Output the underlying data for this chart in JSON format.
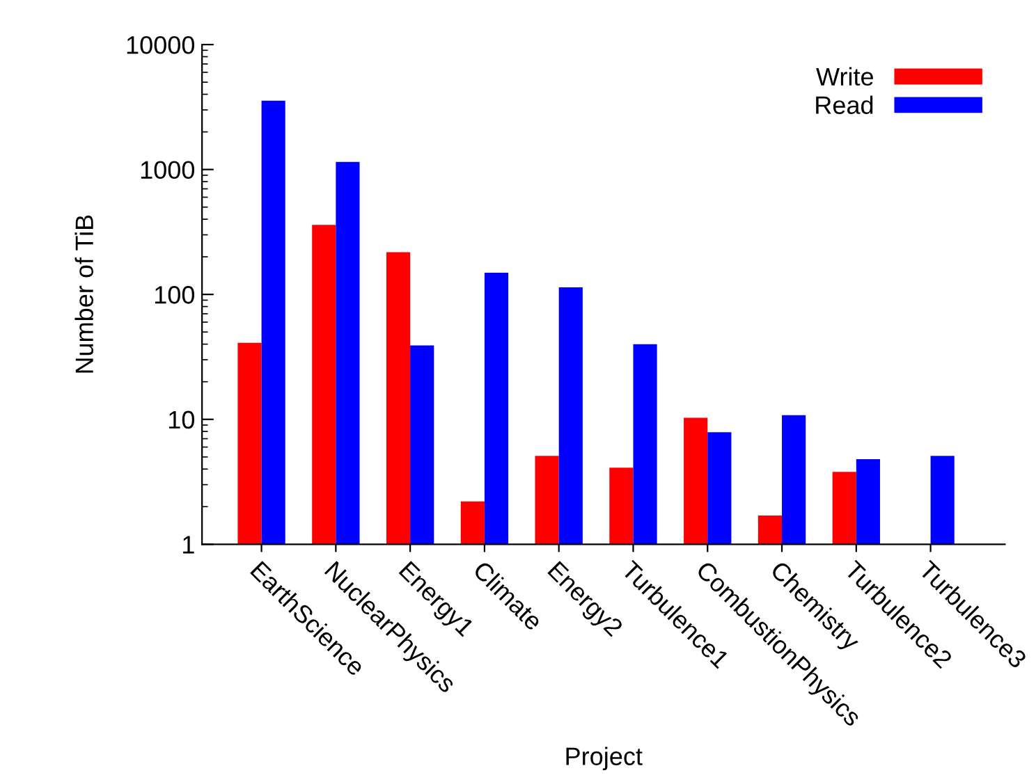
{
  "chart_data": {
    "type": "bar",
    "xlabel": "Project",
    "ylabel": "Number of TiB",
    "categories": [
      "EarthScience",
      "NuclearPhysics",
      "Energy1",
      "Climate",
      "Energy2",
      "Turbulence1",
      "CombustionPhysics",
      "Chemistry",
      "Turbulence2",
      "Turbulence3"
    ],
    "series": [
      {
        "name": "Write",
        "color": "#ff0000",
        "values": [
          41,
          360,
          218,
          2.2,
          5.1,
          4.1,
          10.3,
          1.7,
          3.8,
          null
        ]
      },
      {
        "name": "Read",
        "color": "#0000ff",
        "values": [
          3550,
          1150,
          39,
          149,
          114,
          40,
          7.9,
          10.8,
          4.8,
          5.1
        ]
      }
    ],
    "log": "y",
    "ylim": [
      1,
      10000
    ],
    "yticks": [
      1,
      10,
      100,
      1000,
      10000
    ],
    "grid": false,
    "legend": "top right"
  }
}
